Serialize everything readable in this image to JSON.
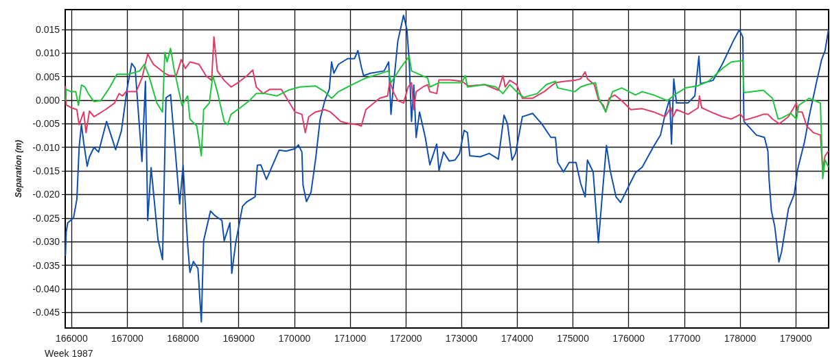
{
  "chart_data": {
    "type": "line",
    "xlabel": "Week 1987",
    "ylabel": "Separation (m)",
    "xlim": [
      165885,
      179590
    ],
    "ylim": [
      -0.0483,
      0.0192
    ],
    "xticks": [
      166000,
      167000,
      168000,
      169000,
      170000,
      171000,
      172000,
      173000,
      174000,
      175000,
      176000,
      177000,
      178000,
      179000
    ],
    "yticks": [
      {
        "value": 0.015,
        "label": "0.015"
      },
      {
        "value": 0.01,
        "label": "0.010"
      },
      {
        "value": 0.005,
        "label": "0.005"
      },
      {
        "value": 0,
        "label": "0.000"
      },
      {
        "value": -0.005,
        "label": "-0.005"
      },
      {
        "value": -0.01,
        "label": "-0.010"
      },
      {
        "value": -0.015,
        "label": "-0.015"
      },
      {
        "value": -0.02,
        "label": "-0.020"
      },
      {
        "value": -0.025,
        "label": "-0.025"
      },
      {
        "value": -0.03,
        "label": "-0.030"
      },
      {
        "value": -0.035,
        "label": "-0.035"
      },
      {
        "value": -0.04,
        "label": "-0.040"
      },
      {
        "value": -0.045,
        "label": "-0.045"
      }
    ],
    "grid": true,
    "line_style": "solid",
    "series": [
      {
        "color": "#1ec53c",
        "x": [
          165889,
          165902,
          165992,
          166074,
          166123,
          166176,
          166238,
          166299,
          166402,
          166525,
          166689,
          166812,
          167017,
          167222,
          167304,
          167386,
          167530,
          167632,
          167673,
          167714,
          167776,
          167837,
          167981,
          168083,
          168124,
          168247,
          168329,
          168370,
          168472,
          168534,
          168616,
          168739,
          168800,
          168862,
          169027,
          169191,
          169314,
          169478,
          169683,
          169888,
          170093,
          170380,
          170544,
          170667,
          170790,
          171036,
          171282,
          171692,
          171733,
          171897,
          172061,
          172102,
          172390,
          172431,
          172595,
          172759,
          173005,
          173067,
          173107,
          173415,
          173620,
          173743,
          173866,
          173989,
          174112,
          174358,
          174522,
          174686,
          174727,
          175034,
          175137,
          175260,
          175404,
          175465,
          175588,
          175711,
          175875,
          176121,
          176244,
          176449,
          176695,
          176818,
          177024,
          177229,
          177434,
          177680,
          177844,
          178049,
          178069,
          178418,
          178582,
          178684,
          178746,
          178910,
          179013,
          179054,
          179238,
          179443,
          179484,
          179526,
          179587
        ],
        "values": [
          -0.0001,
          0.0023,
          0.0018,
          0.0018,
          -0.0011,
          0.0032,
          0.0028,
          0.0014,
          -0.0003,
          -0.0001,
          0.0028,
          0.0055,
          0.0055,
          0.0062,
          0.0076,
          0.0052,
          -0.0006,
          -0.0025,
          0.0101,
          0.0081,
          0.011,
          0.0067,
          -0.0011,
          0.0009,
          -0.004,
          -0.0055,
          -0.0118,
          -0.002,
          -0.0006,
          0.0052,
          0.0018,
          -0.0045,
          -0.0052,
          -0.003,
          -0.0016,
          -0.0001,
          0.0014,
          0.0014,
          0.0009,
          0.0021,
          0.0028,
          0.003,
          0.0018,
          0.0004,
          0.0018,
          0.0033,
          0.0047,
          0.0062,
          0.0037,
          0.0067,
          0.0093,
          0.0062,
          0.0047,
          0.0028,
          0.0037,
          0.0037,
          0.0037,
          0.0052,
          0.0028,
          0.0033,
          0.0028,
          0.0014,
          0.0033,
          0.0018,
          0.0006,
          0.0014,
          0.0033,
          0.004,
          0.0026,
          0.0018,
          0.0028,
          0.0033,
          0.0037,
          0.0004,
          -0.0025,
          0.0018,
          0.0026,
          0.0011,
          0.0018,
          0.0011,
          -0.0001,
          0.0011,
          0.0026,
          0.003,
          0.004,
          0.0067,
          0.0081,
          0.0084,
          0.0016,
          0.0021,
          0.0004,
          -0.004,
          -0.0038,
          -0.0028,
          -0.004,
          -0.0011,
          0.0004,
          -0.0006,
          -0.0166,
          -0.0127,
          -0.0142
        ]
      },
      {
        "color": "#e03a66",
        "x": [
          165889,
          165902,
          165992,
          166094,
          166135,
          166217,
          166258,
          166320,
          166402,
          166607,
          166771,
          166853,
          166914,
          166976,
          167160,
          167263,
          167366,
          167468,
          167673,
          167755,
          167878,
          167968,
          168042,
          168124,
          168288,
          168411,
          168513,
          168555,
          168616,
          168739,
          168862,
          168985,
          169150,
          169252,
          169314,
          169437,
          169560,
          169765,
          169888,
          170011,
          170134,
          170195,
          170257,
          170380,
          170544,
          170647,
          170831,
          170995,
          171139,
          171200,
          171282,
          171528,
          171672,
          171713,
          171774,
          171856,
          171959,
          172041,
          172102,
          172143,
          172185,
          172308,
          172390,
          172431,
          172554,
          172595,
          172800,
          173005,
          173128,
          173415,
          173661,
          173743,
          173784,
          173866,
          173989,
          174092,
          174276,
          174481,
          174686,
          174850,
          175034,
          175137,
          175219,
          175260,
          175383,
          175465,
          175547,
          175588,
          175650,
          175752,
          175875,
          176039,
          176244,
          176449,
          176654,
          176757,
          176798,
          176859,
          177065,
          177249,
          177270,
          177311,
          177475,
          177680,
          177844,
          178008,
          178090,
          178295,
          178418,
          178500,
          178582,
          178705,
          178869,
          179013,
          179033,
          179115,
          179197,
          179320,
          179443,
          179484,
          179526,
          179587
        ],
        "values": [
          0.003,
          -0.001,
          -0.0016,
          -0.002,
          -0.0052,
          -0.0025,
          -0.0069,
          -0.0023,
          -0.0035,
          -0.002,
          -0.0006,
          0.0014,
          0.0009,
          0.0018,
          0.0018,
          0.0047,
          0.0098,
          0.0076,
          0.0057,
          0.0052,
          0.0052,
          0.0086,
          0.0067,
          0.0081,
          0.0076,
          0.0052,
          0.0042,
          0.0134,
          0.0062,
          0.0042,
          0.0028,
          0.0037,
          0.0052,
          0.0064,
          0.0028,
          0.0014,
          0.0023,
          0.0023,
          -0.0001,
          -0.0025,
          -0.003,
          -0.0069,
          -0.0035,
          -0.0025,
          -0.002,
          -0.0025,
          -0.0045,
          -0.005,
          -0.0052,
          -0.0055,
          -0.002,
          0.0004,
          0.0009,
          0.004,
          0.0018,
          -0.0001,
          -0.0006,
          0.0028,
          0.0037,
          -0.002,
          0.0018,
          0.0028,
          0.0033,
          0.0018,
          0.0014,
          0.0043,
          0.0043,
          0.004,
          0.003,
          0.0033,
          0.0021,
          0.0052,
          0.0028,
          0.0042,
          0.0033,
          0.0004,
          0.0004,
          0.0018,
          0.0037,
          0.004,
          0.0042,
          0.0045,
          0.006,
          0.0045,
          0.0033,
          -0.0001,
          -0.0011,
          -0.0025,
          0.0004,
          0.0011,
          -0.0001,
          -0.002,
          -0.0018,
          -0.0025,
          -0.0035,
          -0.0016,
          -0.0035,
          -0.002,
          -0.003,
          -0.0016,
          0.0009,
          -0.0016,
          -0.0025,
          -0.0035,
          -0.004,
          -0.003,
          -0.0042,
          -0.0035,
          -0.003,
          -0.003,
          -0.004,
          -0.005,
          -0.0035,
          -0.0006,
          -0.0025,
          -0.0025,
          -0.0055,
          -0.0069,
          -0.0074,
          -0.0147,
          -0.0118,
          -0.0108
        ]
      },
      {
        "color": "#0f4fb0",
        "x": [
          165889,
          165902,
          165930,
          166033,
          166094,
          166135,
          166176,
          166217,
          166279,
          166320,
          166402,
          166484,
          166627,
          166791,
          166894,
          166997,
          167079,
          167140,
          167263,
          167325,
          167366,
          167427,
          167550,
          167632,
          167694,
          167776,
          167940,
          168001,
          168083,
          168124,
          168186,
          168268,
          168329,
          168370,
          168493,
          168575,
          168698,
          168739,
          168842,
          168875,
          168945,
          169068,
          169150,
          169293,
          169334,
          169396,
          169498,
          169724,
          169847,
          170011,
          170072,
          170134,
          170154,
          170216,
          170298,
          170380,
          170462,
          170544,
          170626,
          170667,
          170708,
          170790,
          170954,
          171077,
          171139,
          171200,
          171241,
          171364,
          171610,
          171692,
          171733,
          171774,
          171856,
          171959,
          172020,
          172061,
          172102,
          172143,
          172185,
          172246,
          172349,
          172431,
          172554,
          172595,
          172677,
          172779,
          172882,
          172964,
          173046,
          173107,
          173148,
          173333,
          173497,
          173661,
          173763,
          173825,
          173907,
          173969,
          174092,
          174276,
          174440,
          174604,
          174686,
          174727,
          174830,
          174932,
          175055,
          175137,
          175219,
          175260,
          175363,
          175457,
          175527,
          175601,
          175670,
          175773,
          175855,
          175998,
          176121,
          176244,
          176449,
          176572,
          176654,
          176736,
          176769,
          176810,
          176859,
          177065,
          177188,
          177261,
          177290,
          177516,
          177680,
          177885,
          177987,
          178049,
          178069,
          178295,
          178438,
          178500,
          178520,
          178562,
          178623,
          178697,
          178746,
          178869,
          178972,
          179033,
          179156,
          179238,
          179361,
          179464,
          179526,
          179587
        ],
        "values": [
          -0.033,
          -0.028,
          -0.026,
          -0.025,
          -0.021,
          -0.01,
          -0.0052,
          -0.009,
          -0.014,
          -0.012,
          -0.01,
          -0.011,
          -0.0045,
          -0.0105,
          -0.0065,
          0.0025,
          0.0078,
          0.0068,
          -0.013,
          0.004,
          -0.0255,
          -0.0143,
          -0.0295,
          -0.0338,
          0.0005,
          0.0012,
          -0.022,
          -0.0138,
          -0.0307,
          -0.0365,
          -0.0342,
          -0.0357,
          -0.047,
          -0.0298,
          -0.0235,
          -0.0245,
          -0.0255,
          -0.0298,
          -0.026,
          -0.0367,
          -0.0303,
          -0.0225,
          -0.0215,
          -0.0205,
          -0.0138,
          -0.0137,
          -0.0168,
          -0.0106,
          -0.0108,
          -0.0103,
          -0.0095,
          -0.011,
          -0.018,
          -0.0215,
          -0.0195,
          -0.0125,
          -0.004,
          -0.0001,
          0.0023,
          0.0081,
          0.0057,
          0.0076,
          0.0088,
          0.0088,
          0.0105,
          0.0071,
          0.0052,
          0.0057,
          0.0062,
          0.0081,
          -0.003,
          0.0027,
          0.0125,
          0.018,
          0.0149,
          0.0081,
          -0.0045,
          0.0032,
          -0.0079,
          -0.0025,
          -0.0079,
          -0.0137,
          -0.0093,
          -0.0149,
          -0.011,
          -0.0129,
          -0.0127,
          -0.0113,
          -0.0064,
          -0.0069,
          -0.0118,
          -0.012,
          -0.0113,
          -0.0125,
          -0.0032,
          -0.005,
          -0.0127,
          -0.0113,
          -0.0035,
          -0.0028,
          -0.005,
          -0.0079,
          -0.0079,
          -0.0132,
          -0.0152,
          -0.0132,
          -0.0132,
          -0.0176,
          -0.0205,
          -0.0127,
          -0.0152,
          -0.0302,
          -0.02,
          -0.0096,
          -0.015,
          -0.0205,
          -0.0217,
          -0.0183,
          -0.0154,
          -0.0142,
          -0.0098,
          -0.0074,
          -0.003,
          0.0002,
          -0.0093,
          0.0045,
          -0.0006,
          -0.0006,
          0.0009,
          0.0093,
          0.0035,
          0.0042,
          0.0076,
          0.0127,
          0.0149,
          0.0134,
          -0.0045,
          -0.0074,
          -0.0079,
          -0.0108,
          -0.0166,
          -0.0234,
          -0.0268,
          -0.0343,
          -0.0321,
          -0.023,
          -0.02,
          -0.0147,
          -0.0089,
          -0.0036,
          0.0032,
          0.0086,
          0.0105,
          0.0149
        ]
      }
    ]
  }
}
